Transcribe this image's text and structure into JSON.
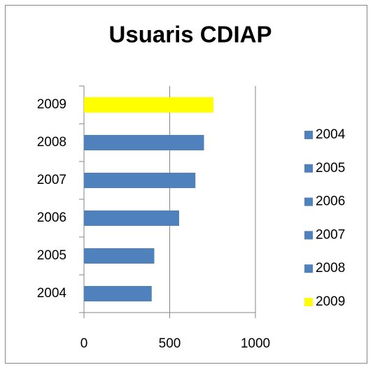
{
  "chart_data": {
    "type": "bar",
    "orientation": "horizontal",
    "title": "Usuaris CDIAP",
    "categories": [
      "2004",
      "2005",
      "2006",
      "2007",
      "2008",
      "2009"
    ],
    "values": [
      395,
      410,
      555,
      650,
      700,
      755
    ],
    "colors": [
      "#4f81bd",
      "#4f81bd",
      "#4f81bd",
      "#4f81bd",
      "#4f81bd",
      "#ffff00"
    ],
    "xlim": [
      0,
      1000
    ],
    "xticks": [
      0,
      500,
      1000
    ],
    "grid": true,
    "legend": "right"
  }
}
